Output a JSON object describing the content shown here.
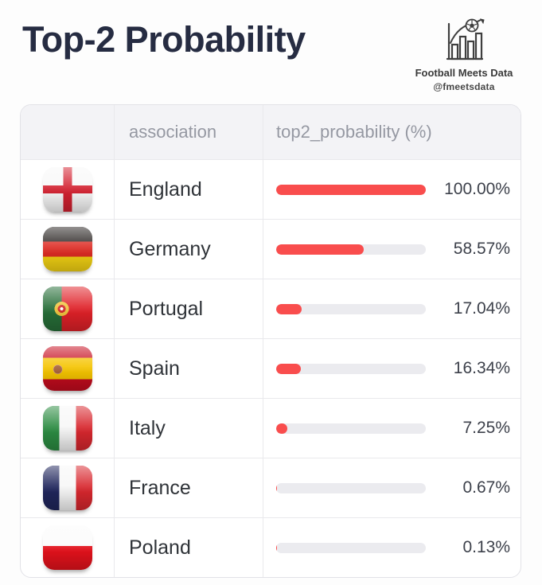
{
  "page": {
    "title": "Top-2 Probability"
  },
  "brand": {
    "name": "Football Meets Data",
    "handle": "@fmeetsdata",
    "icon": "bar-chart-with-football-icon"
  },
  "table": {
    "columns": {
      "flag": "",
      "association": "association",
      "probability": "top2_probability (%)"
    },
    "rows": [
      {
        "association": "England",
        "value": 100.0,
        "value_label": "100.00%",
        "flag_icon": "england-flag-icon"
      },
      {
        "association": "Germany",
        "value": 58.57,
        "value_label": "58.57%",
        "flag_icon": "germany-flag-icon"
      },
      {
        "association": "Portugal",
        "value": 17.04,
        "value_label": "17.04%",
        "flag_icon": "portugal-flag-icon"
      },
      {
        "association": "Spain",
        "value": 16.34,
        "value_label": "16.34%",
        "flag_icon": "spain-flag-icon"
      },
      {
        "association": "Italy",
        "value": 7.25,
        "value_label": "7.25%",
        "flag_icon": "italy-flag-icon"
      },
      {
        "association": "France",
        "value": 0.67,
        "value_label": "0.67%",
        "flag_icon": "france-flag-icon"
      },
      {
        "association": "Poland",
        "value": 0.13,
        "value_label": "0.13%",
        "flag_icon": "poland-flag-icon"
      }
    ]
  },
  "colors": {
    "title_text": "#262c42",
    "bar_fill": "#f94d4d",
    "bar_track": "#ebebef",
    "header_bg": "#f3f3f6",
    "header_text": "#9598a2"
  },
  "chart_data": {
    "type": "bar",
    "orientation": "horizontal",
    "categories": [
      "England",
      "Germany",
      "Portugal",
      "Spain",
      "Italy",
      "France",
      "Poland"
    ],
    "values": [
      100.0,
      58.57,
      17.04,
      16.34,
      7.25,
      0.67,
      0.13
    ],
    "title": "Top-2 Probability",
    "xlabel": "top2_probability (%)",
    "ylabel": "association",
    "xlim": [
      0,
      100
    ],
    "grid": false,
    "legend": false,
    "bar_color": "#f94d4d",
    "track_color": "#ebebef"
  }
}
